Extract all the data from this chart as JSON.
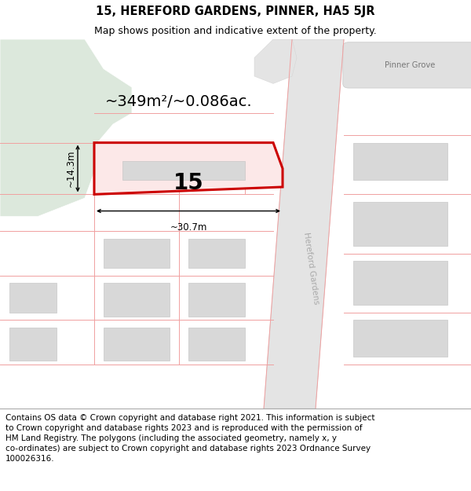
{
  "title": "15, HEREFORD GARDENS, PINNER, HA5 5JR",
  "subtitle": "Map shows position and indicative extent of the property.",
  "footer_line1": "Contains OS data © Crown copyright and database right 2021. This information is subject",
  "footer_line2": "to Crown copyright and database rights 2023 and is reproduced with the permission of",
  "footer_line3": "HM Land Registry. The polygons (including the associated geometry, namely x, y",
  "footer_line4": "co-ordinates) are subject to Crown copyright and database rights 2023 Ordnance Survey",
  "footer_line5": "100026316.",
  "area_label": "~349m²/~0.086ac.",
  "width_label": "~30.7m",
  "height_label": "~14.3m",
  "number_label": "15",
  "map_bg": "#ffffff",
  "green_color": "#dce8dc",
  "road_color": "#e8e8e8",
  "plot_fill": "#fce8e8",
  "plot_edge": "#cc0000",
  "building_fill": "#d8d8d8",
  "building_edge": "#c8c8c8",
  "pink_line": "#f0a0a0",
  "title_fontsize": 10.5,
  "subtitle_fontsize": 9,
  "footer_fontsize": 7.5,
  "area_fontsize": 14,
  "number_fontsize": 20
}
